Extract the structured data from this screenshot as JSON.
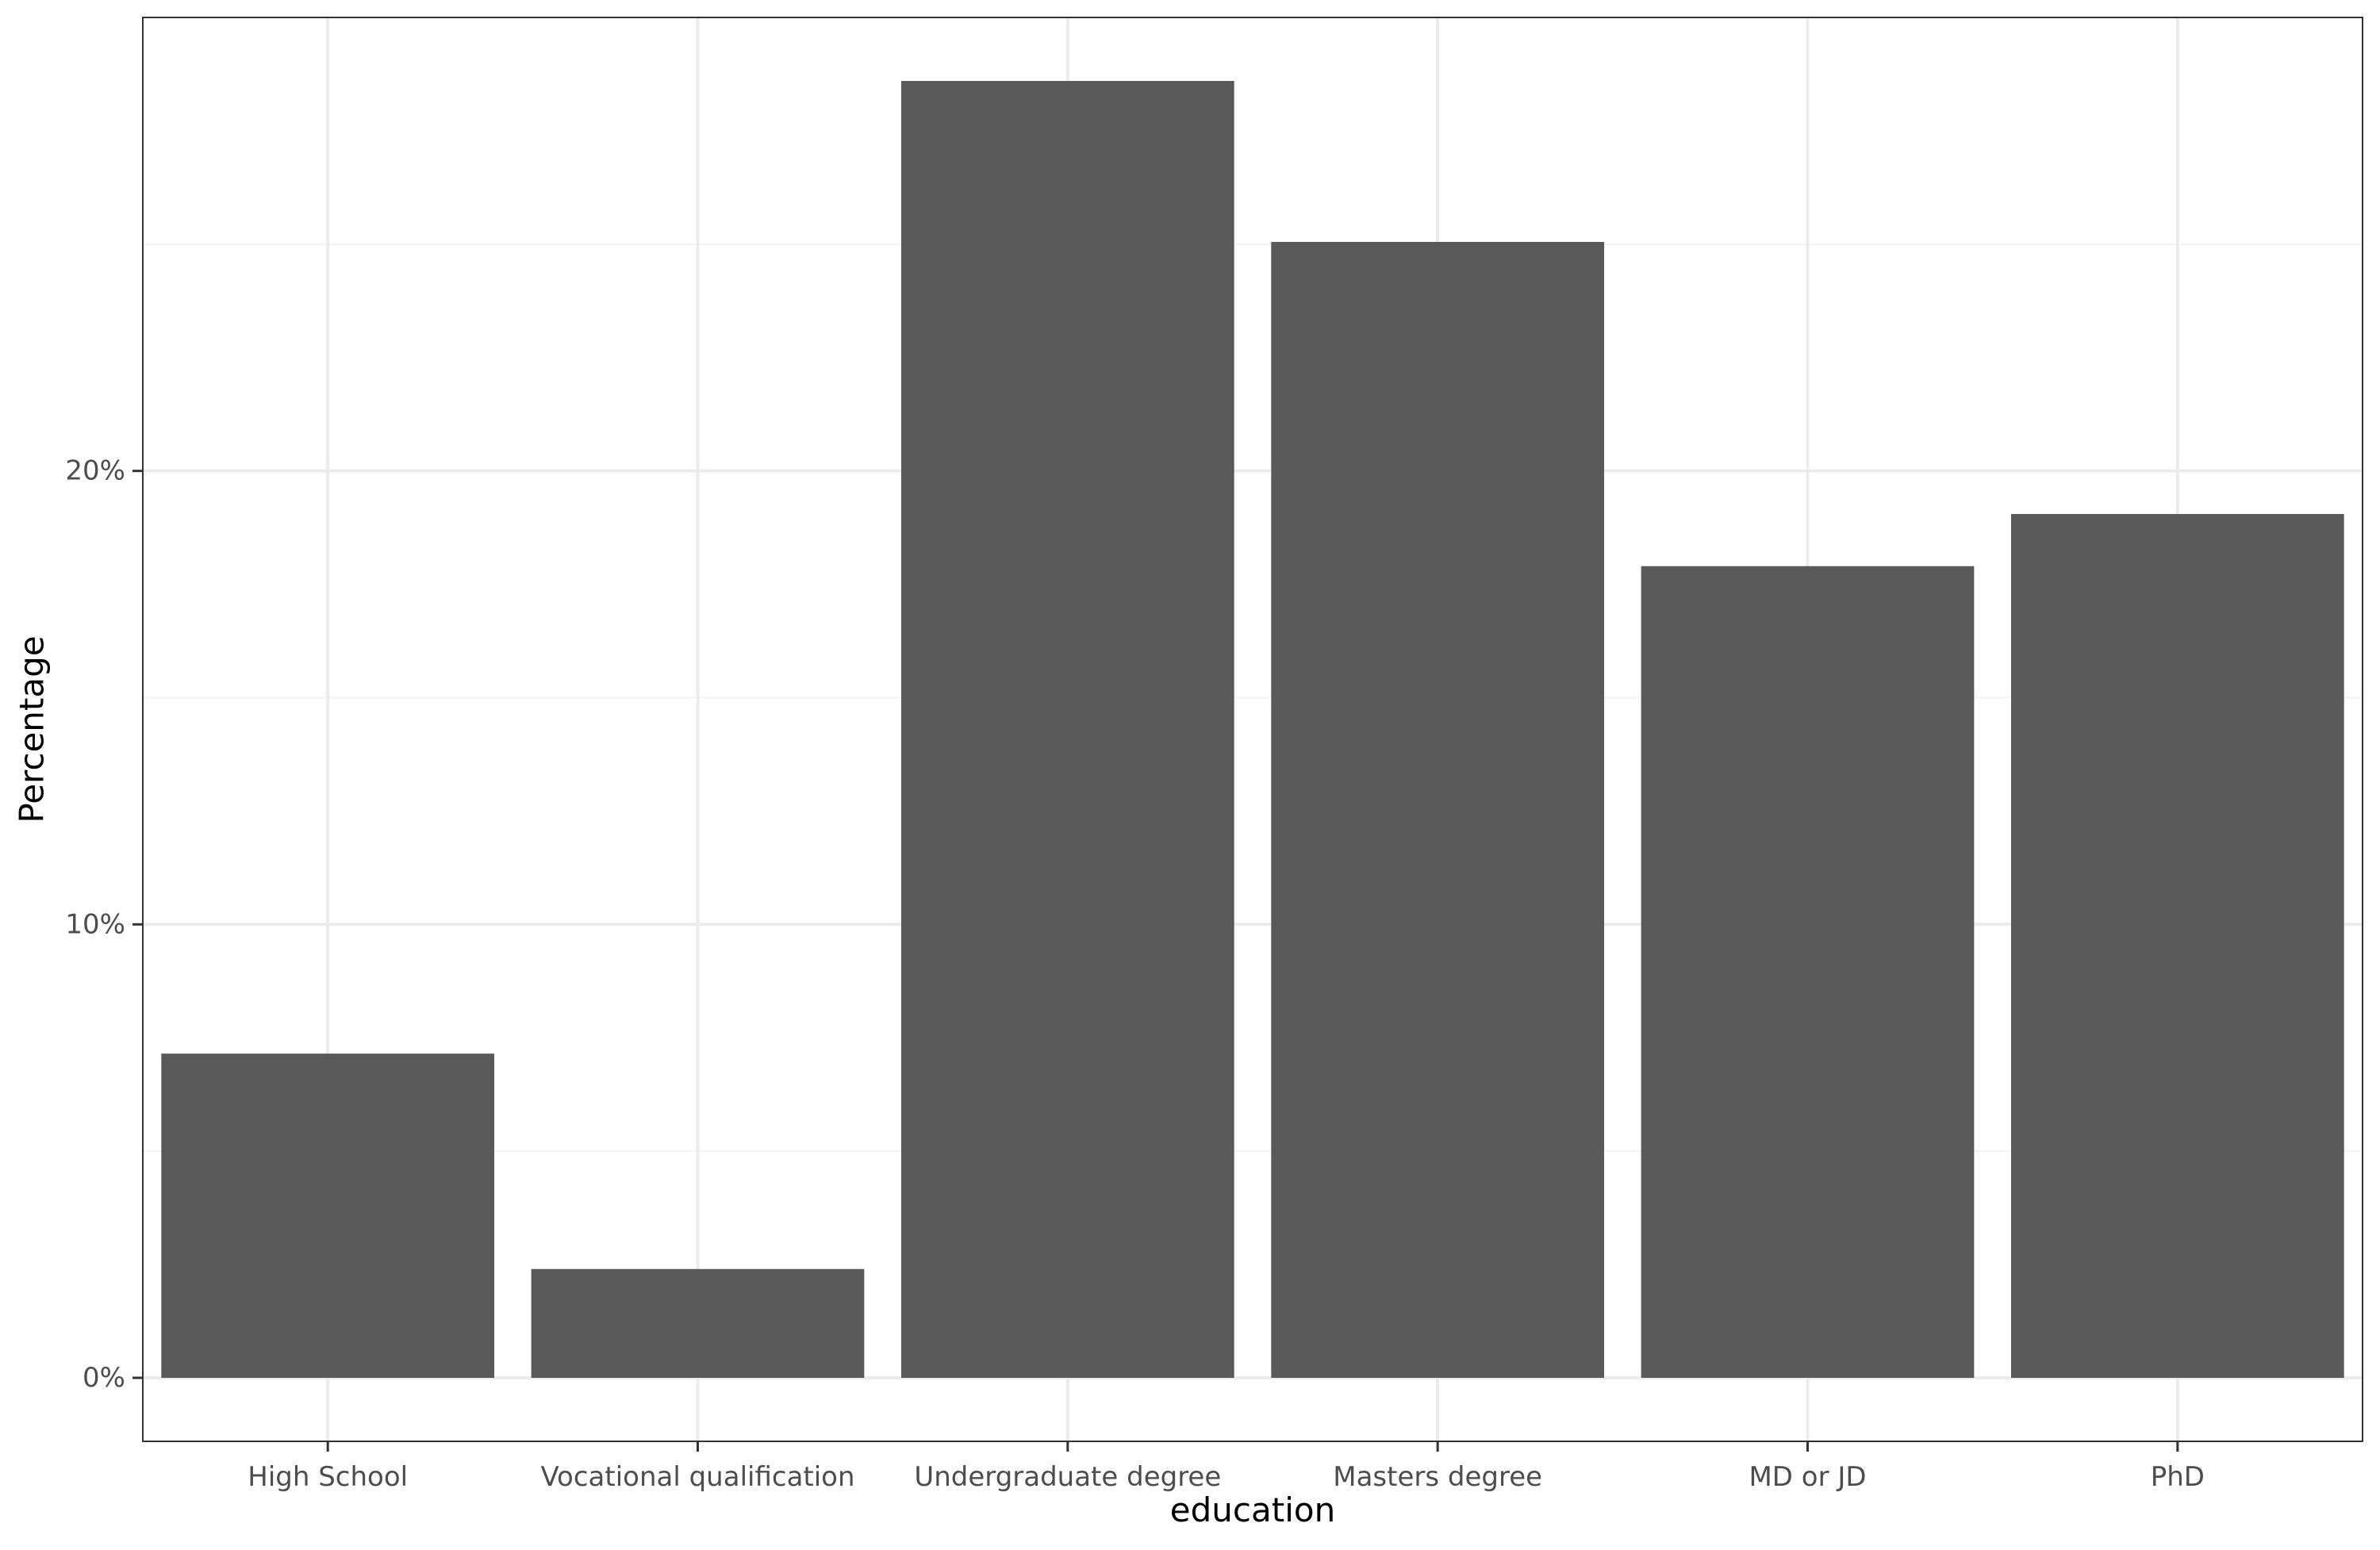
{
  "chart_data": {
    "type": "bar",
    "title": "",
    "xlabel": "education",
    "ylabel": "Percentage",
    "categories": [
      "High School",
      "Vocational qualification",
      "Undergraduate degree",
      "Masters degree",
      "MD or JD",
      "PhD"
    ],
    "values": [
      7.15,
      2.4,
      28.6,
      25.05,
      17.9,
      19.05
    ],
    "y_unit": "%",
    "ylim": [
      -1.4,
      30.0
    ],
    "y_ticks": [
      0,
      10,
      20
    ],
    "y_tick_labels": [
      "0%",
      "10%",
      "20%"
    ],
    "grid": true,
    "legend": "none",
    "colors": {
      "bar": "#595959",
      "grid_major": "#ebebeb",
      "grid_minor": "#f3f3f3",
      "panel_border": "#333333",
      "tick_text": "#4d4d4d",
      "axis_title": "#000000"
    }
  }
}
